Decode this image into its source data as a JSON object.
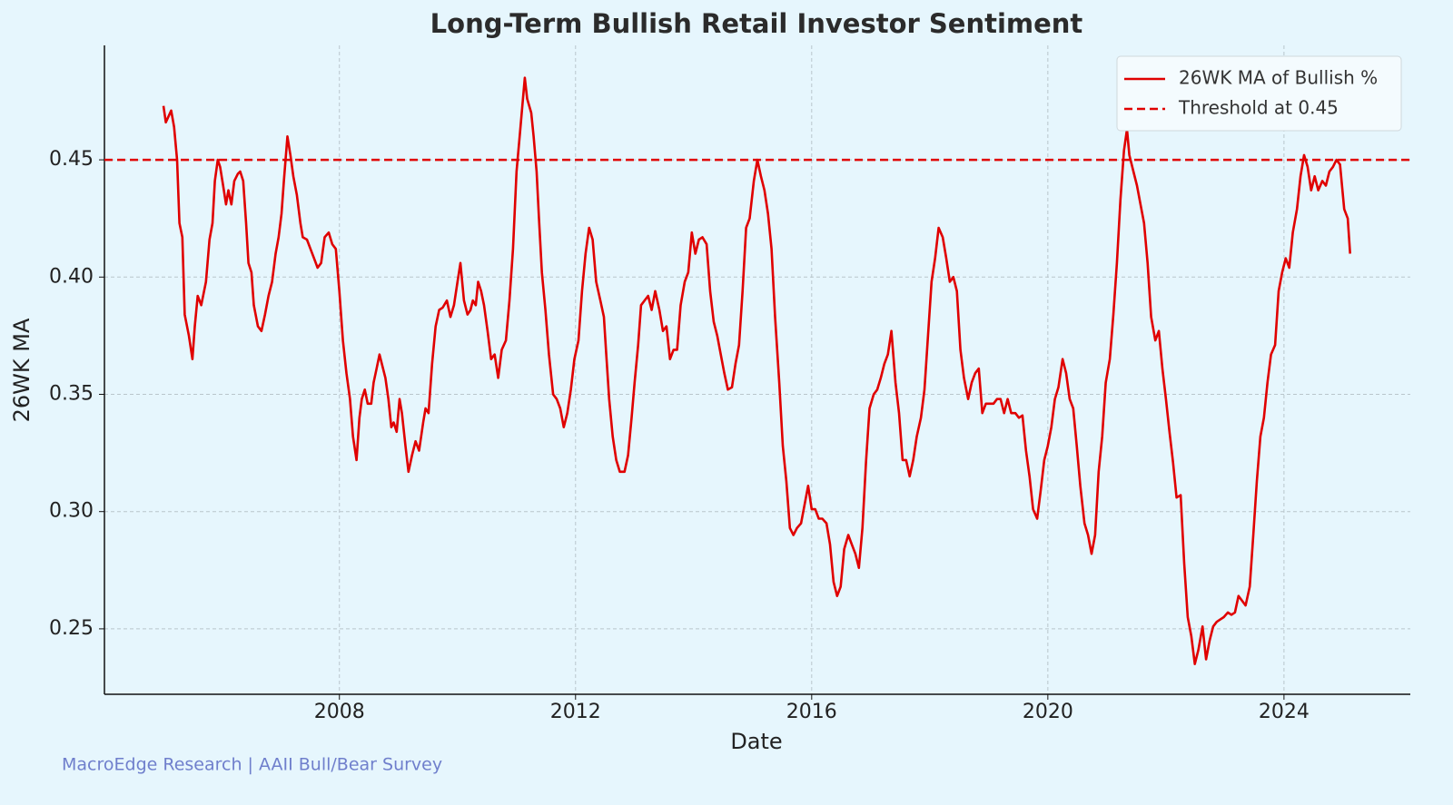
{
  "chart_data": {
    "type": "line",
    "title": "Long-Term Bullish Retail Investor Sentiment",
    "x_label": "Date",
    "y_label": "26WK MA",
    "source": "MacroEdge Research | AAII Bull/Bear Survey",
    "xlim": [
      2004.02,
      2026.14
    ],
    "ylim": [
      0.2221,
      0.4988
    ],
    "xticks": [
      2008,
      2012,
      2016,
      2020,
      2024
    ],
    "yticks": [
      0.25,
      {
        "value": 0.3,
        "label": "0.30"
      },
      0.35,
      {
        "value": 0.4,
        "label": "0.40"
      },
      0.45
    ],
    "grid": true,
    "legend": "upper right",
    "threshold": {
      "name": "Threshold at 0.45",
      "value": 0.45,
      "color": "#e00000",
      "dashed": true
    },
    "x": [
      2005.02,
      2005.06,
      2005.15,
      2005.2,
      2005.25,
      2005.29,
      2005.34,
      2005.38,
      2005.45,
      2005.51,
      2005.55,
      2005.6,
      2005.66,
      2005.74,
      2005.8,
      2005.85,
      2005.89,
      2005.94,
      2005.98,
      2006.03,
      2006.08,
      2006.12,
      2006.17,
      2006.22,
      2006.28,
      2006.32,
      2006.37,
      2006.42,
      2006.46,
      2006.51,
      2006.55,
      2006.62,
      2006.68,
      2006.74,
      2006.8,
      2006.86,
      2006.92,
      2006.97,
      2007.02,
      2007.06,
      2007.12,
      2007.17,
      2007.22,
      2007.28,
      2007.34,
      2007.38,
      2007.45,
      2007.51,
      2007.57,
      2007.63,
      2007.69,
      2007.75,
      2007.82,
      2007.88,
      2007.94,
      2008.0,
      2008.06,
      2008.12,
      2008.18,
      2008.23,
      2008.29,
      2008.34,
      2008.38,
      2008.43,
      2008.48,
      2008.54,
      2008.58,
      2008.63,
      2008.68,
      2008.72,
      2008.78,
      2008.83,
      2008.88,
      2008.92,
      2008.97,
      2009.02,
      2009.06,
      2009.12,
      2009.17,
      2009.23,
      2009.29,
      2009.35,
      2009.42,
      2009.46,
      2009.51,
      2009.57,
      2009.63,
      2009.69,
      2009.75,
      2009.82,
      2009.88,
      2009.94,
      2010.0,
      2010.05,
      2010.11,
      2010.17,
      2010.22,
      2010.26,
      2010.31,
      2010.35,
      2010.4,
      2010.45,
      2010.51,
      2010.57,
      2010.63,
      2010.69,
      2010.75,
      2010.82,
      2010.88,
      2010.94,
      2011.0,
      2011.06,
      2011.14,
      2011.18,
      2011.25,
      2011.29,
      2011.34,
      2011.38,
      2011.43,
      2011.49,
      2011.55,
      2011.62,
      2011.68,
      2011.74,
      2011.8,
      2011.86,
      2011.92,
      2011.98,
      2012.05,
      2012.11,
      2012.17,
      2012.23,
      2012.29,
      2012.35,
      2012.42,
      2012.48,
      2012.52,
      2012.57,
      2012.63,
      2012.69,
      2012.75,
      2012.83,
      2012.89,
      2012.95,
      2013.0,
      2013.06,
      2013.11,
      2013.17,
      2013.23,
      2013.29,
      2013.35,
      2013.42,
      2013.48,
      2013.54,
      2013.6,
      2013.66,
      2013.72,
      2013.78,
      2013.85,
      2013.91,
      2013.97,
      2014.03,
      2014.09,
      2014.15,
      2014.22,
      2014.28,
      2014.34,
      2014.4,
      2014.46,
      2014.52,
      2014.58,
      2014.65,
      2014.71,
      2014.77,
      2014.83,
      2014.89,
      2014.95,
      2015.02,
      2015.08,
      2015.14,
      2015.2,
      2015.26,
      2015.32,
      2015.38,
      2015.45,
      2015.51,
      2015.57,
      2015.63,
      2015.69,
      2015.75,
      2015.82,
      2015.88,
      2015.94,
      2016.0,
      2016.06,
      2016.12,
      2016.18,
      2016.25,
      2016.31,
      2016.37,
      2016.43,
      2016.49,
      2016.55,
      2016.62,
      2016.68,
      2016.74,
      2016.8,
      2016.86,
      2016.92,
      2016.98,
      2017.05,
      2017.11,
      2017.17,
      2017.23,
      2017.29,
      2017.35,
      2017.42,
      2017.48,
      2017.54,
      2017.6,
      2017.66,
      2017.72,
      2017.78,
      2017.85,
      2017.91,
      2017.97,
      2018.03,
      2018.09,
      2018.15,
      2018.22,
      2018.28,
      2018.34,
      2018.4,
      2018.46,
      2018.52,
      2018.58,
      2018.65,
      2018.71,
      2018.77,
      2018.83,
      2018.89,
      2018.95,
      2019.02,
      2019.08,
      2019.14,
      2019.2,
      2019.26,
      2019.32,
      2019.38,
      2019.45,
      2019.51,
      2019.57,
      2019.63,
      2019.69,
      2019.75,
      2019.82,
      2019.88,
      2019.94,
      2020.0,
      2020.06,
      2020.12,
      2020.18,
      2020.25,
      2020.31,
      2020.37,
      2020.43,
      2020.49,
      2020.55,
      2020.62,
      2020.68,
      2020.74,
      2020.8,
      2020.86,
      2020.92,
      2020.98,
      2021.05,
      2021.11,
      2021.17,
      2021.23,
      2021.29,
      2021.34,
      2021.38,
      2021.45,
      2021.51,
      2021.57,
      2021.63,
      2021.69,
      2021.75,
      2021.82,
      2021.88,
      2021.94,
      2022.0,
      2022.06,
      2022.12,
      2022.18,
      2022.25,
      2022.31,
      2022.37,
      2022.43,
      2022.49,
      2022.55,
      2022.62,
      2022.68,
      2022.74,
      2022.8,
      2022.86,
      2022.92,
      2022.98,
      2023.05,
      2023.11,
      2023.17,
      2023.23,
      2023.29,
      2023.35,
      2023.42,
      2023.48,
      2023.54,
      2023.6,
      2023.66,
      2023.72,
      2023.78,
      2023.85,
      2023.91,
      2023.97,
      2024.03,
      2024.09,
      2024.15,
      2024.22,
      2024.28,
      2024.34,
      2024.4,
      2024.46,
      2024.52,
      2024.58,
      2024.65,
      2024.71,
      2024.77,
      2024.83,
      2024.89,
      2024.95,
      2025.02,
      2025.08,
      2025.12
    ],
    "series": [
      {
        "name": "26WK MA of Bullish %",
        "color": "#e00000",
        "values": [
          0.473,
          0.466,
          0.471,
          0.464,
          0.45,
          0.423,
          0.417,
          0.384,
          0.375,
          0.365,
          0.379,
          0.392,
          0.388,
          0.398,
          0.416,
          0.423,
          0.441,
          0.45,
          0.447,
          0.439,
          0.431,
          0.437,
          0.431,
          0.441,
          0.444,
          0.445,
          0.441,
          0.423,
          0.406,
          0.402,
          0.388,
          0.379,
          0.377,
          0.384,
          0.392,
          0.398,
          0.41,
          0.417,
          0.427,
          0.441,
          0.46,
          0.452,
          0.443,
          0.435,
          0.423,
          0.417,
          0.416,
          0.412,
          0.408,
          0.404,
          0.406,
          0.417,
          0.419,
          0.414,
          0.412,
          0.394,
          0.373,
          0.359,
          0.348,
          0.332,
          0.322,
          0.34,
          0.348,
          0.352,
          0.346,
          0.346,
          0.355,
          0.361,
          0.367,
          0.363,
          0.357,
          0.348,
          0.336,
          0.338,
          0.334,
          0.348,
          0.342,
          0.328,
          0.317,
          0.324,
          0.33,
          0.326,
          0.338,
          0.344,
          0.342,
          0.363,
          0.379,
          0.386,
          0.387,
          0.39,
          0.383,
          0.388,
          0.398,
          0.406,
          0.39,
          0.384,
          0.386,
          0.39,
          0.388,
          0.398,
          0.394,
          0.388,
          0.377,
          0.365,
          0.367,
          0.357,
          0.369,
          0.373,
          0.39,
          0.412,
          0.445,
          0.462,
          0.485,
          0.476,
          0.47,
          0.46,
          0.445,
          0.425,
          0.402,
          0.386,
          0.367,
          0.35,
          0.348,
          0.344,
          0.336,
          0.342,
          0.352,
          0.365,
          0.373,
          0.394,
          0.41,
          0.421,
          0.416,
          0.398,
          0.39,
          0.383,
          0.367,
          0.348,
          0.332,
          0.322,
          0.317,
          0.317,
          0.324,
          0.34,
          0.355,
          0.371,
          0.388,
          0.39,
          0.392,
          0.386,
          0.394,
          0.386,
          0.377,
          0.379,
          0.365,
          0.369,
          0.369,
          0.388,
          0.398,
          0.402,
          0.419,
          0.41,
          0.416,
          0.417,
          0.414,
          0.394,
          0.381,
          0.375,
          0.367,
          0.359,
          0.352,
          0.353,
          0.363,
          0.371,
          0.394,
          0.421,
          0.425,
          0.441,
          0.45,
          0.443,
          0.437,
          0.427,
          0.412,
          0.383,
          0.355,
          0.328,
          0.313,
          0.293,
          0.29,
          0.293,
          0.295,
          0.303,
          0.311,
          0.301,
          0.301,
          0.297,
          0.297,
          0.295,
          0.286,
          0.27,
          0.264,
          0.268,
          0.284,
          0.29,
          0.286,
          0.282,
          0.276,
          0.293,
          0.321,
          0.344,
          0.35,
          0.352,
          0.357,
          0.363,
          0.367,
          0.377,
          0.355,
          0.342,
          0.322,
          0.322,
          0.315,
          0.322,
          0.332,
          0.34,
          0.352,
          0.375,
          0.398,
          0.408,
          0.421,
          0.417,
          0.408,
          0.398,
          0.4,
          0.394,
          0.369,
          0.357,
          0.348,
          0.355,
          0.359,
          0.361,
          0.342,
          0.346,
          0.346,
          0.346,
          0.348,
          0.348,
          0.342,
          0.348,
          0.342,
          0.342,
          0.34,
          0.341,
          0.326,
          0.315,
          0.301,
          0.297,
          0.309,
          0.322,
          0.328,
          0.336,
          0.348,
          0.353,
          0.365,
          0.359,
          0.348,
          0.344,
          0.328,
          0.311,
          0.295,
          0.29,
          0.282,
          0.29,
          0.317,
          0.332,
          0.355,
          0.365,
          0.384,
          0.406,
          0.433,
          0.454,
          0.463,
          0.452,
          0.445,
          0.439,
          0.431,
          0.423,
          0.406,
          0.383,
          0.373,
          0.377,
          0.361,
          0.348,
          0.334,
          0.321,
          0.306,
          0.307,
          0.278,
          0.255,
          0.247,
          0.235,
          0.241,
          0.251,
          0.237,
          0.245,
          0.251,
          0.253,
          0.254,
          0.255,
          0.257,
          0.256,
          0.257,
          0.264,
          0.262,
          0.26,
          0.268,
          0.29,
          0.313,
          0.332,
          0.34,
          0.355,
          0.367,
          0.371,
          0.394,
          0.402,
          0.408,
          0.404,
          0.419,
          0.429,
          0.443,
          0.452,
          0.447,
          0.437,
          0.443,
          0.437,
          0.441,
          0.439,
          0.445,
          0.447,
          0.45,
          0.448,
          0.429,
          0.425,
          0.41
        ]
      }
    ]
  }
}
